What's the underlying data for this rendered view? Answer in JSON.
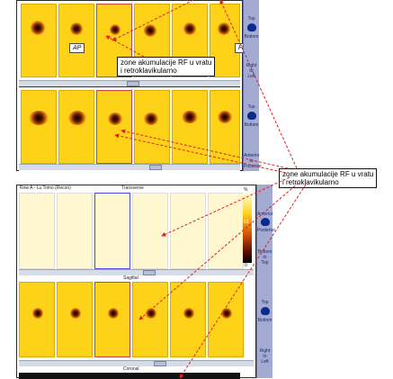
{
  "top_panel": {
    "ap_label": "AP",
    "pa_label": "PA",
    "row1_numbers": [
      "",
      "",
      "",
      "",
      "",
      ""
    ],
    "row2_numbers": [
      "",
      "",
      "",
      "",
      "",
      ""
    ],
    "sidebar": {
      "posterior_vertical": "Posterior",
      "top": "Top",
      "bottom": "Bottom",
      "right": "Right",
      "to1": "to",
      "left": "Left",
      "anterior": "Anterior",
      "to2": "to",
      "posterior": "Posterior"
    }
  },
  "callout_1": {
    "line1": "zone akumulacije RF u vratu",
    "line2": "i retroklavikularno"
  },
  "callout_2": {
    "line1": "zone akumulacije RF u vratu",
    "line2": "i retroklavikularno"
  },
  "bottom_panel": {
    "header_left": "Row A - Lu Tomo (Recon)",
    "header_center": "Transverse",
    "sagittal_label": "Sagittal",
    "coronal_label": "Coronal",
    "colorbar_top": "%",
    "colorbar_value": "63",
    "colorbar_bottom": "0",
    "sidebar": {
      "anterior": "Anterior",
      "to1": "to",
      "posterior": "Posterior",
      "bottom": "Bottom",
      "to2": "to",
      "top": "Top",
      "top2": "Top",
      "bottom2": "Bottom",
      "right": "Right",
      "to3": "to",
      "left": "Left"
    }
  },
  "colors": {
    "scan_yellow": "#ffd21a",
    "sidebar_blue": "#a4abd3",
    "arrow_red": "#e02020"
  }
}
